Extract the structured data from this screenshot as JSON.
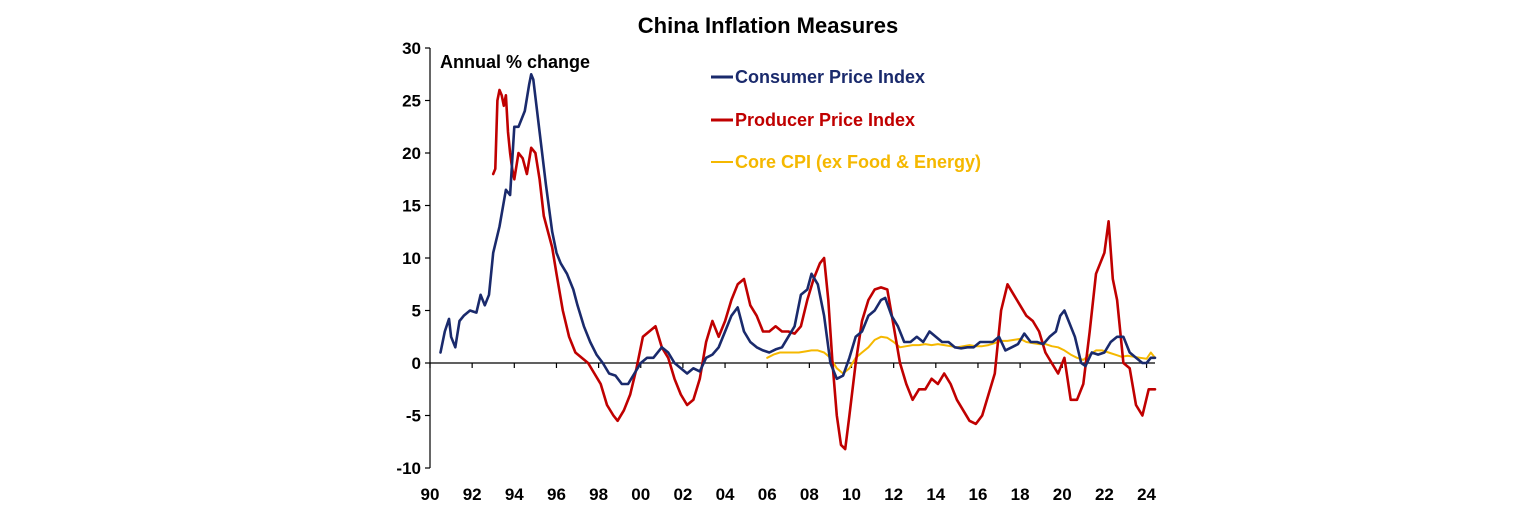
{
  "chart_data": {
    "type": "line",
    "title": "China Inflation Measures",
    "annotation": "Annual % change",
    "xlabel": "",
    "ylabel": "",
    "xlim": [
      1990,
      2024.4
    ],
    "ylim": [
      -10,
      30
    ],
    "yticks": [
      30,
      25,
      20,
      15,
      10,
      5,
      0,
      -5,
      -10
    ],
    "xticks": [
      {
        "value": 1990,
        "label": "90"
      },
      {
        "value": 1992,
        "label": "92"
      },
      {
        "value": 1994,
        "label": "94"
      },
      {
        "value": 1996,
        "label": "96"
      },
      {
        "value": 1998,
        "label": "98"
      },
      {
        "value": 2000,
        "label": "00"
      },
      {
        "value": 2002,
        "label": "02"
      },
      {
        "value": 2004,
        "label": "04"
      },
      {
        "value": 2006,
        "label": "06"
      },
      {
        "value": 2008,
        "label": "08"
      },
      {
        "value": 2010,
        "label": "10"
      },
      {
        "value": 2012,
        "label": "12"
      },
      {
        "value": 2014,
        "label": "14"
      },
      {
        "value": 2016,
        "label": "16"
      },
      {
        "value": 2018,
        "label": "18"
      },
      {
        "value": 2020,
        "label": "20"
      },
      {
        "value": 2022,
        "label": "22"
      },
      {
        "value": 2024,
        "label": "24"
      }
    ],
    "legend_position": "top-right",
    "series": [
      {
        "name": "Consumer Price Index",
        "color": "#1a2a6c",
        "x": [
          1990.5,
          1990.7,
          1990.9,
          1991.0,
          1991.2,
          1991.4,
          1991.6,
          1991.9,
          1992.2,
          1992.4,
          1992.6,
          1992.8,
          1993.0,
          1993.3,
          1993.6,
          1993.8,
          1994.0,
          1994.2,
          1994.5,
          1994.7,
          1994.8,
          1994.9,
          1995.2,
          1995.5,
          1995.8,
          1996.0,
          1996.2,
          1996.5,
          1996.8,
          1997.0,
          1997.3,
          1997.6,
          1997.9,
          1998.2,
          1998.5,
          1998.8,
          1999.1,
          1999.4,
          1999.7,
          2000.0,
          2000.3,
          2000.6,
          2001.0,
          2001.3,
          2001.6,
          2001.9,
          2002.2,
          2002.5,
          2002.8,
          2003.1,
          2003.4,
          2003.7,
          2004.0,
          2004.3,
          2004.6,
          2004.9,
          2005.2,
          2005.5,
          2005.8,
          2006.1,
          2006.4,
          2006.7,
          2007.0,
          2007.3,
          2007.6,
          2007.9,
          2008.1,
          2008.4,
          2008.7,
          2009.0,
          2009.3,
          2009.6,
          2009.9,
          2010.2,
          2010.5,
          2010.8,
          2011.1,
          2011.4,
          2011.6,
          2011.9,
          2012.2,
          2012.5,
          2012.8,
          2013.1,
          2013.4,
          2013.7,
          2014.0,
          2014.3,
          2014.6,
          2014.9,
          2015.2,
          2015.5,
          2015.8,
          2016.1,
          2016.4,
          2016.7,
          2017.0,
          2017.3,
          2017.6,
          2017.9,
          2018.2,
          2018.5,
          2018.8,
          2019.1,
          2019.4,
          2019.7,
          2019.9,
          2020.1,
          2020.3,
          2020.6,
          2020.9,
          2021.1,
          2021.4,
          2021.7,
          2022.0,
          2022.3,
          2022.6,
          2022.9,
          2023.2,
          2023.5,
          2023.8,
          2024.0,
          2024.2,
          2024.4
        ],
        "values": [
          1.0,
          3.0,
          4.2,
          2.5,
          1.5,
          4.0,
          4.5,
          5.0,
          4.8,
          6.5,
          5.5,
          6.5,
          10.5,
          13.0,
          16.5,
          16.0,
          22.5,
          22.5,
          24.0,
          26.5,
          27.5,
          27.0,
          22.0,
          17.0,
          12.5,
          10.5,
          9.5,
          8.5,
          7.0,
          5.5,
          3.5,
          2.0,
          0.8,
          0.0,
          -1.0,
          -1.2,
          -2.0,
          -2.0,
          -1.0,
          0.0,
          0.5,
          0.5,
          1.5,
          1.0,
          0.0,
          -0.5,
          -1.0,
          -0.5,
          -0.8,
          0.5,
          0.8,
          1.5,
          3.0,
          4.5,
          5.3,
          3.0,
          2.0,
          1.5,
          1.2,
          1.0,
          1.3,
          1.5,
          2.5,
          3.5,
          6.5,
          7.0,
          8.5,
          7.5,
          4.5,
          0.0,
          -1.5,
          -1.2,
          0.5,
          2.5,
          3.0,
          4.5,
          5.0,
          6.0,
          6.2,
          4.5,
          3.5,
          2.0,
          2.0,
          2.5,
          2.0,
          3.0,
          2.5,
          2.0,
          2.0,
          1.5,
          1.4,
          1.5,
          1.5,
          2.0,
          2.0,
          2.0,
          2.5,
          1.2,
          1.5,
          1.8,
          2.8,
          2.0,
          2.0,
          1.8,
          2.5,
          3.0,
          4.5,
          5.0,
          4.0,
          2.5,
          0.0,
          -0.3,
          1.0,
          0.8,
          1.0,
          2.0,
          2.5,
          2.5,
          1.0,
          0.5,
          0.0,
          0.0,
          0.5,
          0.5
        ]
      },
      {
        "name": "Producer Price Index",
        "color": "#c00000",
        "x": [
          1993.0,
          1993.1,
          1993.2,
          1993.3,
          1993.4,
          1993.5,
          1993.6,
          1993.7,
          1993.8,
          1993.9,
          1994.0,
          1994.2,
          1994.4,
          1994.6,
          1994.8,
          1995.0,
          1995.2,
          1995.4,
          1995.6,
          1995.8,
          1996.0,
          1996.3,
          1996.6,
          1996.9,
          1997.2,
          1997.5,
          1997.8,
          1998.1,
          1998.4,
          1998.7,
          1998.9,
          1999.2,
          1999.5,
          1999.8,
          2000.1,
          2000.4,
          2000.7,
          2001.0,
          2001.3,
          2001.6,
          2001.9,
          2002.2,
          2002.5,
          2002.8,
          2003.1,
          2003.4,
          2003.7,
          2004.0,
          2004.3,
          2004.6,
          2004.9,
          2005.2,
          2005.5,
          2005.8,
          2006.1,
          2006.4,
          2006.7,
          2007.0,
          2007.3,
          2007.6,
          2007.9,
          2008.2,
          2008.5,
          2008.7,
          2008.9,
          2009.1,
          2009.3,
          2009.5,
          2009.7,
          2009.9,
          2010.2,
          2010.5,
          2010.8,
          2011.1,
          2011.4,
          2011.7,
          2012.0,
          2012.3,
          2012.6,
          2012.9,
          2013.2,
          2013.5,
          2013.8,
          2014.1,
          2014.4,
          2014.7,
          2015.0,
          2015.3,
          2015.6,
          2015.9,
          2016.2,
          2016.5,
          2016.8,
          2017.1,
          2017.4,
          2017.7,
          2018.0,
          2018.3,
          2018.6,
          2018.9,
          2019.2,
          2019.5,
          2019.8,
          2020.1,
          2020.4,
          2020.7,
          2021.0,
          2021.3,
          2021.6,
          2021.8,
          2022.0,
          2022.2,
          2022.4,
          2022.6,
          2022.9,
          2023.2,
          2023.5,
          2023.8,
          2024.1,
          2024.4
        ],
        "values": [
          18.0,
          18.5,
          25.0,
          26.0,
          25.5,
          24.5,
          25.5,
          22.0,
          20.0,
          18.5,
          17.5,
          20.0,
          19.5,
          18.0,
          20.5,
          20.0,
          17.5,
          14.0,
          12.5,
          11.0,
          8.5,
          5.0,
          2.5,
          1.0,
          0.5,
          0.0,
          -1.0,
          -2.0,
          -4.0,
          -5.0,
          -5.5,
          -4.5,
          -3.0,
          -0.5,
          2.5,
          3.0,
          3.5,
          1.5,
          0.5,
          -1.5,
          -3.0,
          -4.0,
          -3.5,
          -1.5,
          2.0,
          4.0,
          2.5,
          4.0,
          6.0,
          7.5,
          8.0,
          5.5,
          4.5,
          3.0,
          3.0,
          3.5,
          3.0,
          3.0,
          2.8,
          3.5,
          6.0,
          8.0,
          9.5,
          10.0,
          6.0,
          0.0,
          -5.0,
          -7.8,
          -8.2,
          -5.0,
          0.0,
          4.0,
          6.0,
          7.0,
          7.2,
          7.0,
          3.5,
          0.0,
          -2.0,
          -3.5,
          -2.5,
          -2.5,
          -1.5,
          -2.0,
          -1.0,
          -2.0,
          -3.5,
          -4.5,
          -5.5,
          -5.8,
          -5.0,
          -3.0,
          -1.0,
          5.0,
          7.5,
          6.5,
          5.5,
          4.5,
          4.0,
          3.0,
          1.0,
          0.0,
          -1.0,
          0.5,
          -3.5,
          -3.5,
          -2.0,
          3.0,
          8.5,
          9.5,
          10.5,
          13.5,
          8.0,
          6.0,
          0.0,
          -0.5,
          -4.0,
          -5.0,
          -2.5,
          -2.5
        ]
      },
      {
        "name": "Core CPI (ex Food & Energy)",
        "color": "#f5b800",
        "x": [
          2006.0,
          2006.3,
          2006.6,
          2006.9,
          2007.2,
          2007.5,
          2007.8,
          2008.1,
          2008.4,
          2008.7,
          2009.0,
          2009.3,
          2009.6,
          2009.9,
          2010.2,
          2010.5,
          2010.8,
          2011.1,
          2011.4,
          2011.7,
          2012.0,
          2012.3,
          2012.6,
          2012.9,
          2013.2,
          2013.5,
          2013.8,
          2014.1,
          2014.4,
          2014.7,
          2015.0,
          2015.3,
          2015.6,
          2015.9,
          2016.2,
          2016.5,
          2016.8,
          2017.1,
          2017.4,
          2017.7,
          2018.0,
          2018.3,
          2018.6,
          2018.9,
          2019.2,
          2019.5,
          2019.8,
          2020.1,
          2020.4,
          2020.7,
          2021.0,
          2021.3,
          2021.6,
          2021.9,
          2022.2,
          2022.5,
          2022.8,
          2023.1,
          2023.4,
          2023.7,
          2024.0,
          2024.2,
          2024.4
        ],
        "values": [
          0.5,
          0.8,
          1.0,
          1.0,
          1.0,
          1.0,
          1.1,
          1.2,
          1.2,
          1.0,
          0.5,
          -0.5,
          -1.0,
          -0.5,
          0.5,
          1.0,
          1.5,
          2.2,
          2.5,
          2.4,
          2.0,
          1.5,
          1.6,
          1.7,
          1.7,
          1.8,
          1.7,
          1.8,
          1.7,
          1.6,
          1.5,
          1.6,
          1.7,
          1.6,
          1.6,
          1.7,
          1.9,
          2.1,
          2.1,
          2.2,
          2.3,
          2.0,
          1.9,
          1.8,
          1.8,
          1.6,
          1.5,
          1.2,
          0.8,
          0.5,
          0.3,
          0.8,
          1.2,
          1.2,
          1.0,
          0.8,
          0.6,
          0.7,
          0.6,
          0.5,
          0.4,
          1.0,
          0.5
        ]
      }
    ]
  }
}
